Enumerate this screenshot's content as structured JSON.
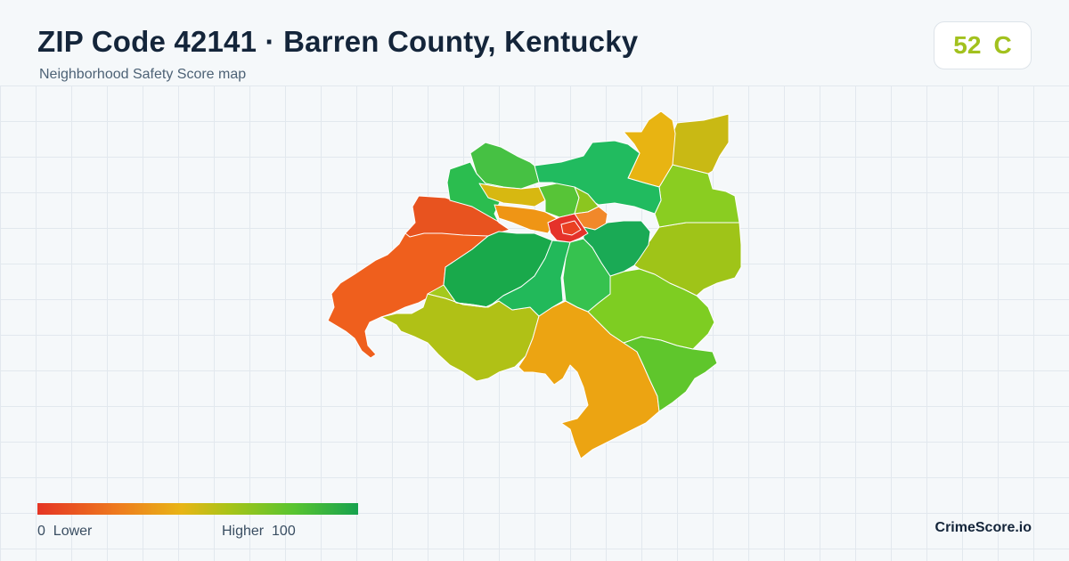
{
  "header": {
    "title": "ZIP Code 42141 · Barren County, Kentucky",
    "subtitle": "Neighborhood Safety Score map"
  },
  "score": {
    "value": "52",
    "grade": "C",
    "color": "#a2c11e"
  },
  "legend": {
    "min_value": "0",
    "min_label": "Lower",
    "max_label": "Higher",
    "max_value": "100",
    "gradient_colors": [
      "#e53524",
      "#ee7b1e",
      "#e8b516",
      "#a7c418",
      "#58c430",
      "#17a24e"
    ]
  },
  "brand": "CrimeScore.io",
  "map": {
    "background_color": "#f5f8fa",
    "regions": [
      {
        "id": "west",
        "color": "#ef5f1d"
      },
      {
        "id": "northwest",
        "color": "#e8531f"
      },
      {
        "id": "southwest",
        "color": "#b0c116"
      },
      {
        "id": "south",
        "color": "#eca412"
      },
      {
        "id": "southeast",
        "color": "#5fc62c"
      },
      {
        "id": "east-lower",
        "color": "#7ecd22"
      },
      {
        "id": "east-middle",
        "color": "#9fc418"
      },
      {
        "id": "east-upper",
        "color": "#8acd21"
      },
      {
        "id": "northeast-tip",
        "color": "#c9b914"
      },
      {
        "id": "northeast-orange",
        "color": "#e8b412"
      },
      {
        "id": "north-green",
        "color": "#21bb5f"
      },
      {
        "id": "north-top",
        "color": "#46c143"
      },
      {
        "id": "north-left",
        "color": "#2bbd4f"
      },
      {
        "id": "center-west",
        "color": "#19a94b"
      },
      {
        "id": "center",
        "color": "#22b95a"
      },
      {
        "id": "center-south",
        "color": "#36c24f"
      },
      {
        "id": "center-east",
        "color": "#1aaa55"
      },
      {
        "id": "inner-north-yellow",
        "color": "#d7b811"
      },
      {
        "id": "inner-orange-left",
        "color": "#ef9515"
      },
      {
        "id": "inner-orange-right",
        "color": "#f1882a"
      },
      {
        "id": "inner-green-a",
        "color": "#57c437"
      },
      {
        "id": "inner-green-b",
        "color": "#8cc61f"
      },
      {
        "id": "downtown-red",
        "color": "#e5322a"
      },
      {
        "id": "downtown-red-2",
        "color": "#ea4023"
      },
      {
        "id": "ring-yellow-green",
        "color": "#a4c91c"
      }
    ]
  }
}
